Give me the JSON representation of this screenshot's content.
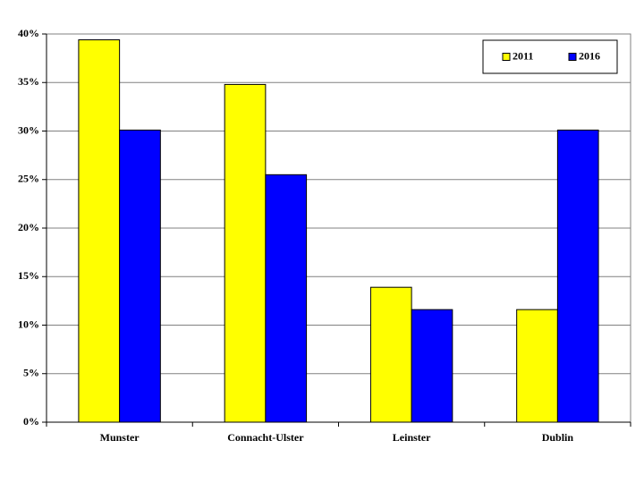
{
  "chart_data": {
    "type": "bar",
    "categories": [
      "Munster",
      "Connacht-Ulster",
      "Leinster",
      "Dublin"
    ],
    "series": [
      {
        "name": "2011",
        "color": "#ffff00",
        "values": [
          39.4,
          34.8,
          13.9,
          11.6
        ]
      },
      {
        "name": "2016",
        "color": "#0000ff",
        "values": [
          30.1,
          25.5,
          11.6,
          30.1
        ]
      }
    ],
    "ylim": [
      0,
      40
    ],
    "yticks": [
      {
        "value": 0,
        "label": "0%"
      },
      {
        "value": 5,
        "label": "5%"
      },
      {
        "value": 10,
        "label": "10%"
      },
      {
        "value": 15,
        "label": "15%"
      },
      {
        "value": 20,
        "label": "20%"
      },
      {
        "value": 25,
        "label": "25%"
      },
      {
        "value": 30,
        "label": "30%"
      },
      {
        "value": 35,
        "label": "35%"
      },
      {
        "value": 40,
        "label": "40%"
      }
    ],
    "grid": true,
    "legend": "upper-right"
  }
}
